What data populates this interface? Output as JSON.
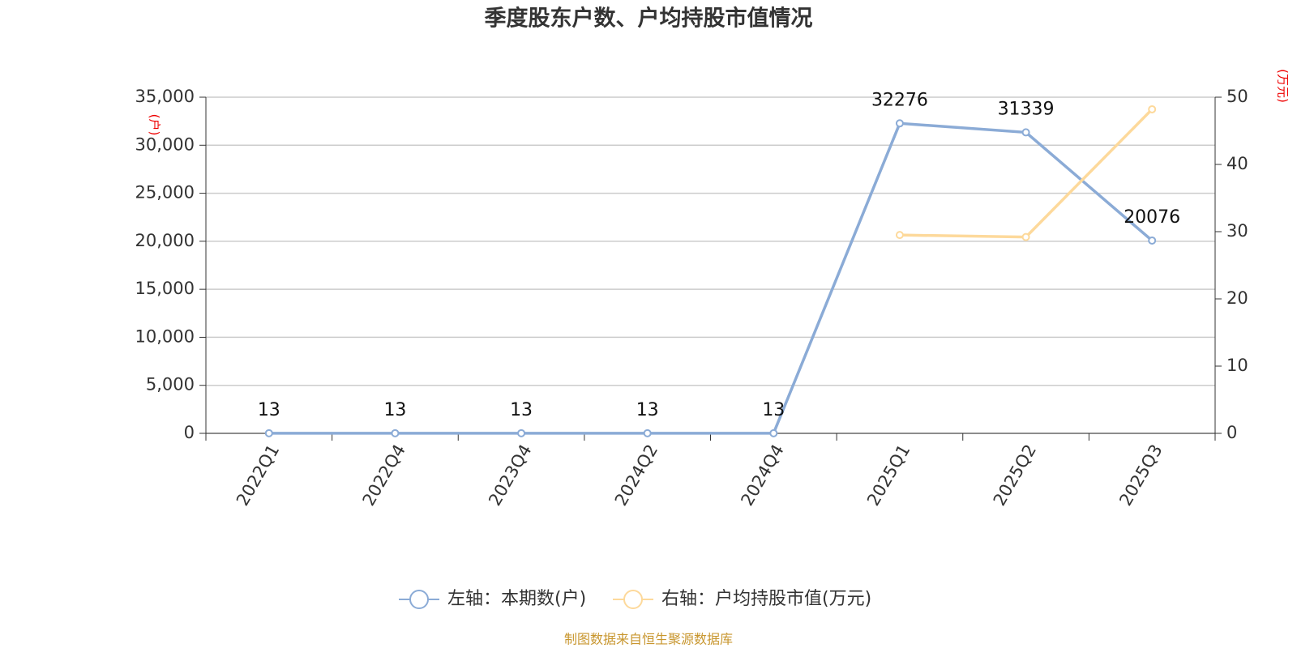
{
  "chart_data": {
    "type": "line",
    "title": "季度股东户数、户均持股市值情况",
    "y_label": "(户)",
    "y2_label": "(万元)",
    "source": "制图数据来自恒生聚源数据库",
    "categories": [
      "2022Q1",
      "2022Q4",
      "2023Q4",
      "2024Q2",
      "2024Q4",
      "2025Q1",
      "2025Q2",
      "2025Q3"
    ],
    "series": [
      {
        "name": "左轴：本期数(户)",
        "color": "#8babd6",
        "values": [
          13,
          13,
          13,
          13,
          13,
          32276,
          31339,
          20076
        ],
        "labels": true
      },
      {
        "name": "右轴：户均持股市值(万元)",
        "color": "#fdd99b",
        "axis": "y2",
        "values": [
          null,
          null,
          null,
          null,
          null,
          29.5,
          29.2,
          48.2
        ]
      }
    ],
    "ylim": [
      0,
      35000
    ],
    "yticks": [
      0,
      {
        "value": 5000,
        "label": "5,000"
      },
      {
        "value": 10000,
        "label": "10,000"
      },
      {
        "value": 15000,
        "label": "15,000"
      },
      {
        "value": 20000,
        "label": "20,000"
      },
      {
        "value": 25000,
        "label": "25,000"
      },
      {
        "value": 30000,
        "label": "30,000"
      },
      {
        "value": 35000,
        "label": "35,000"
      }
    ],
    "y2lim": [
      0,
      50
    ],
    "y2ticks": [
      0,
      10,
      20,
      30,
      40,
      50
    ],
    "grid": true
  }
}
